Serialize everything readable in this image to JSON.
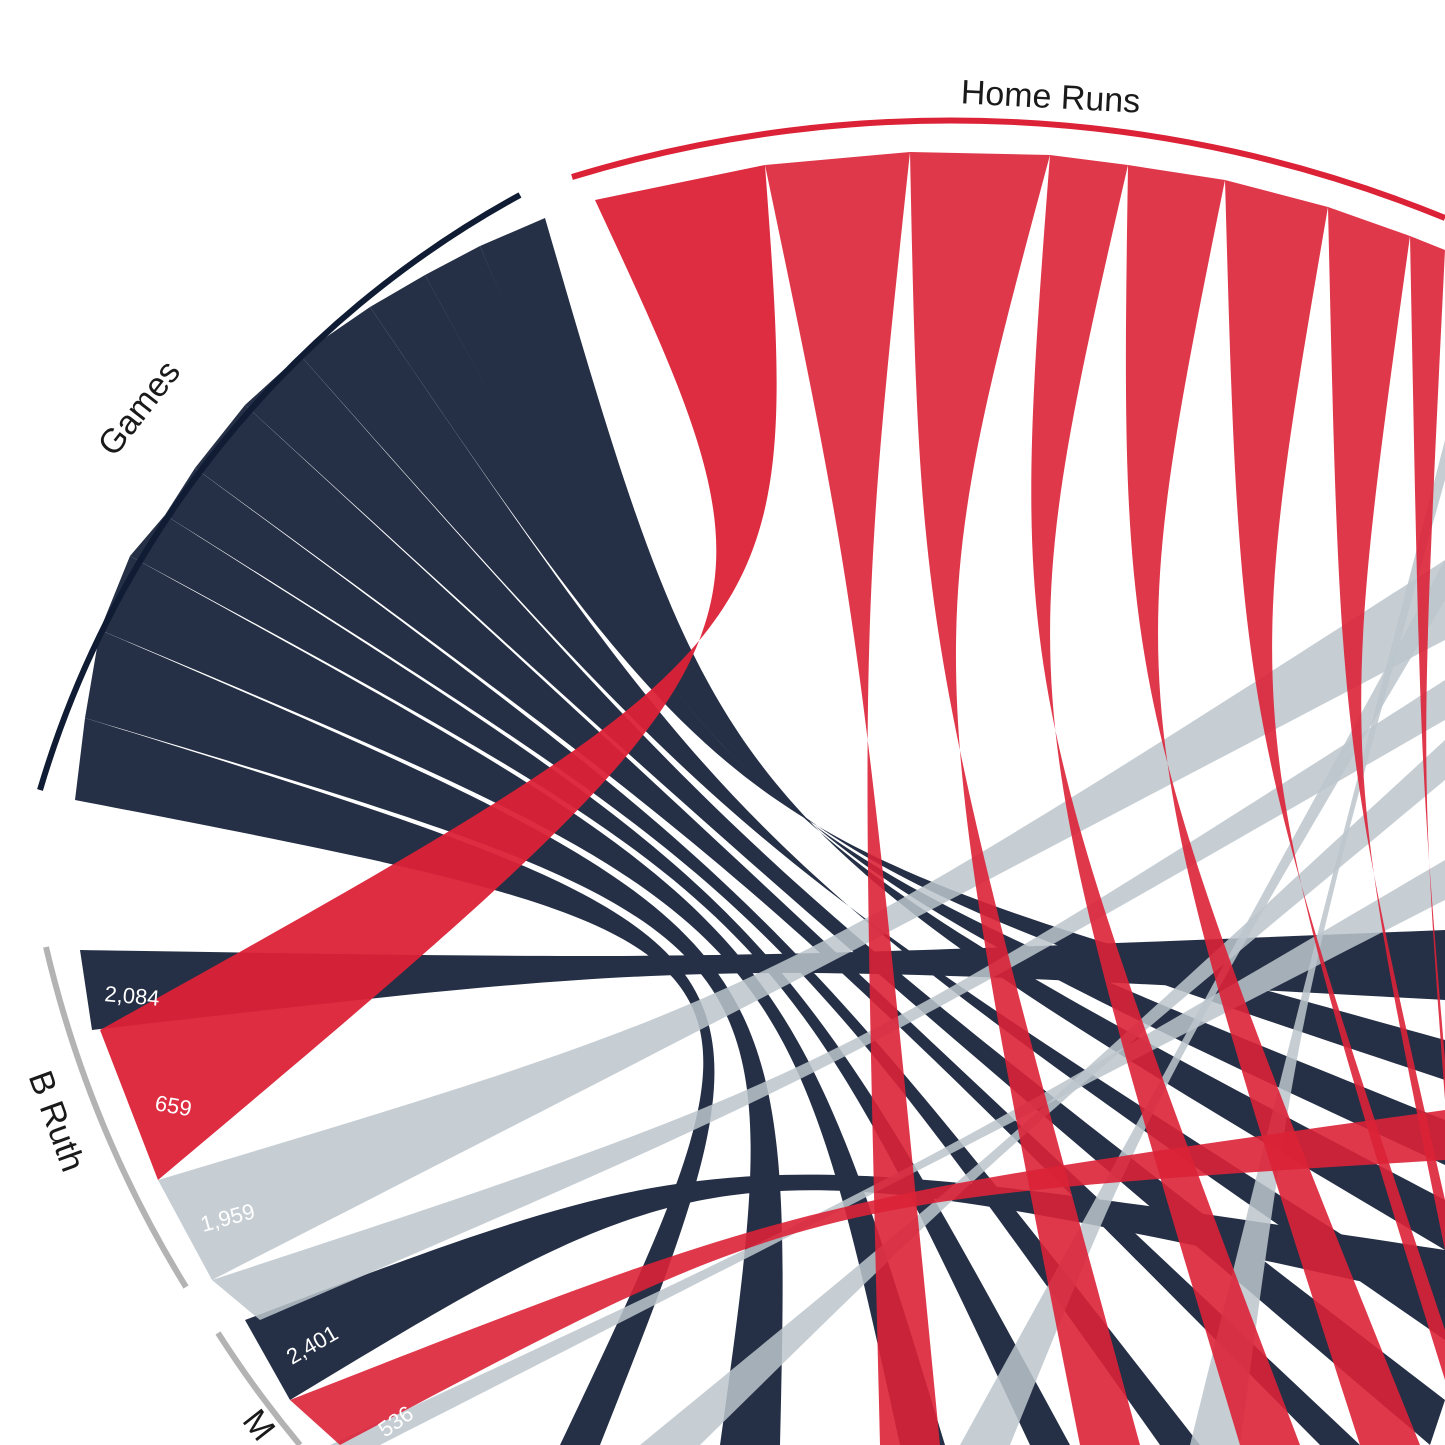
{
  "colors": {
    "games": "#253046",
    "home_runs": "#dc2237",
    "third_stat": "#bcc5cd",
    "games_arc": "#0f1c33",
    "home_runs_arc": "#dc2237",
    "player_arc": "#b3b3b3",
    "background": "#ffffff"
  },
  "chart_data": {
    "type": "chord",
    "stat_groups": [
      {
        "label": "Home Runs",
        "color_key": "home_runs"
      },
      {
        "label": "Games",
        "color_key": "games"
      }
    ],
    "players": [
      {
        "label": "B Ruth",
        "values": [
          {
            "stat": "Games",
            "value": 2084,
            "display": "2,084"
          },
          {
            "stat": "Home Runs",
            "value": 659,
            "display": "659"
          },
          {
            "stat": "",
            "value": 1959,
            "display": "1,959"
          }
        ]
      },
      {
        "label": "M",
        "values": [
          {
            "stat": "Games",
            "value": 2401,
            "display": "2,401"
          },
          {
            "stat": "Home Runs",
            "value": 536,
            "display": "536"
          }
        ]
      }
    ]
  }
}
